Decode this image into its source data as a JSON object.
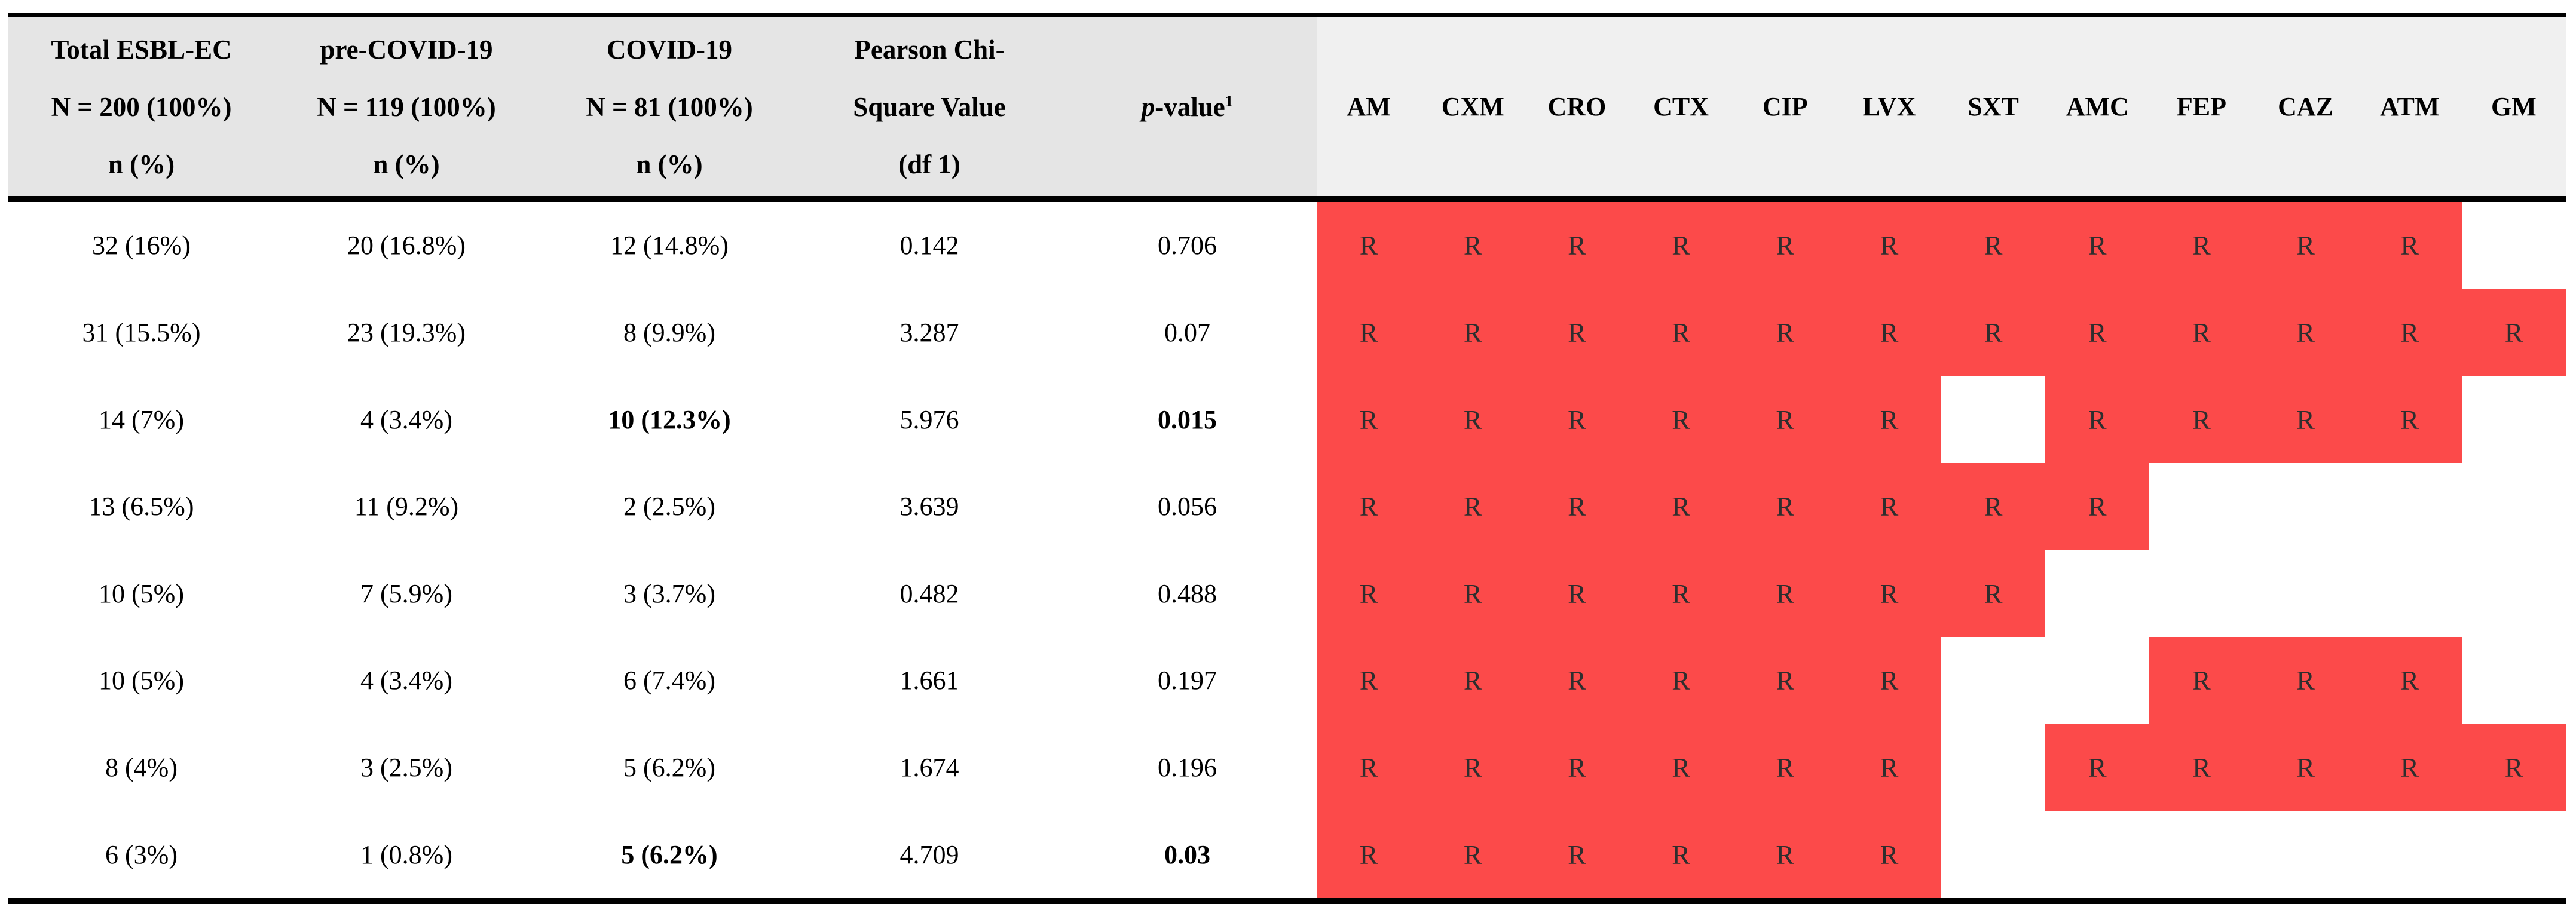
{
  "colors": {
    "heat_red": "#FC4A4A",
    "header_left_bg": "#E5E5E5",
    "header_right_bg": "#F0F0F0",
    "rule_black": "#000000",
    "r_text": "#2E2E2E"
  },
  "header": {
    "groups": [
      {
        "lines": [
          "Total ESBL-EC",
          "N = 200 (100%)",
          "n (%)"
        ]
      },
      {
        "lines": [
          "pre-COVID-19",
          "N = 119 (100%)",
          "n (%)"
        ]
      },
      {
        "lines": [
          "COVID-19",
          "N = 81 (100%)",
          "n (%)"
        ]
      },
      {
        "lines": [
          "Pearson Chi-",
          "Square Value",
          "(df 1)"
        ]
      }
    ],
    "pvalue": {
      "italic": "p",
      "rest": "-value",
      "sup": "1"
    },
    "antibiotics": [
      "AM",
      "CXM",
      "CRO",
      "CTX",
      "CIP",
      "LVX",
      "SXT",
      "AMC",
      "FEP",
      "CAZ",
      "ATM",
      "GM"
    ]
  },
  "resistance_symbol": "R",
  "rows": [
    {
      "total": "32 (16%)",
      "pre": "20 (16.8%)",
      "covid": "12 (14.8%)",
      "bold_covid": false,
      "chi": "0.142",
      "p": "0.706",
      "bold_p": false,
      "r": [
        1,
        1,
        1,
        1,
        1,
        1,
        1,
        1,
        1,
        1,
        1,
        0
      ]
    },
    {
      "total": "31 (15.5%)",
      "pre": "23 (19.3%)",
      "covid": "8 (9.9%)",
      "bold_covid": false,
      "chi": "3.287",
      "p": "0.07",
      "bold_p": false,
      "r": [
        1,
        1,
        1,
        1,
        1,
        1,
        1,
        1,
        1,
        1,
        1,
        1
      ]
    },
    {
      "total": "14 (7%)",
      "pre": "4 (3.4%)",
      "covid": "10 (12.3%)",
      "bold_covid": true,
      "chi": "5.976",
      "p": "0.015",
      "bold_p": true,
      "r": [
        1,
        1,
        1,
        1,
        1,
        1,
        0,
        1,
        1,
        1,
        1,
        0
      ]
    },
    {
      "total": "13 (6.5%)",
      "pre": "11 (9.2%)",
      "covid": "2 (2.5%)",
      "bold_covid": false,
      "chi": "3.639",
      "p": "0.056",
      "bold_p": false,
      "r": [
        1,
        1,
        1,
        1,
        1,
        1,
        1,
        1,
        0,
        0,
        0,
        0
      ]
    },
    {
      "total": "10 (5%)",
      "pre": "7 (5.9%)",
      "covid": "3 (3.7%)",
      "bold_covid": false,
      "chi": "0.482",
      "p": "0.488",
      "bold_p": false,
      "r": [
        1,
        1,
        1,
        1,
        1,
        1,
        1,
        0,
        0,
        0,
        0,
        0
      ]
    },
    {
      "total": "10 (5%)",
      "pre": "4 (3.4%)",
      "covid": "6 (7.4%)",
      "bold_covid": false,
      "chi": "1.661",
      "p": "0.197",
      "bold_p": false,
      "r": [
        1,
        1,
        1,
        1,
        1,
        1,
        0,
        0,
        1,
        1,
        1,
        0
      ]
    },
    {
      "total": "8 (4%)",
      "pre": "3 (2.5%)",
      "covid": "5 (6.2%)",
      "bold_covid": false,
      "chi": "1.674",
      "p": "0.196",
      "bold_p": false,
      "r": [
        1,
        1,
        1,
        1,
        1,
        1,
        0,
        1,
        1,
        1,
        1,
        1
      ]
    },
    {
      "total": "6 (3%)",
      "pre": "1 (0.8%)",
      "covid": "5 (6.2%)",
      "bold_covid": true,
      "chi": "4.709",
      "p": "0.03",
      "bold_p": true,
      "r": [
        1,
        1,
        1,
        1,
        1,
        1,
        0,
        0,
        0,
        0,
        0,
        0
      ]
    }
  ]
}
